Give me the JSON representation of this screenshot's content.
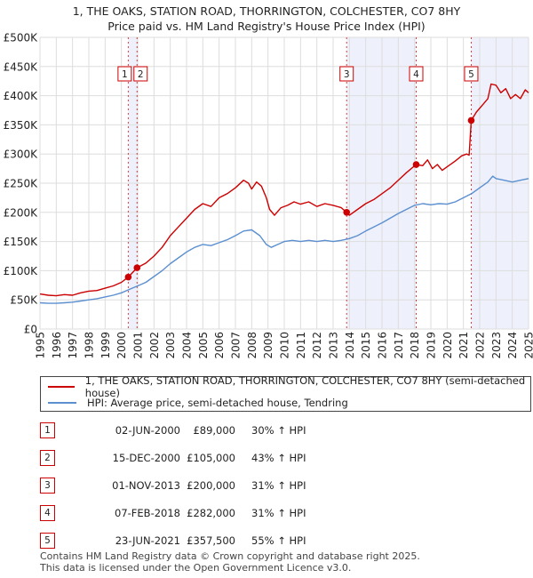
{
  "chart_data": {
    "type": "line",
    "title": "1, THE OAKS, STATION ROAD, THORRINGTON, COLCHESTER, CO7 8HY",
    "subtitle": "Price paid vs. HM Land Registry's House Price Index (HPI)",
    "xlabel": "",
    "ylabel": "",
    "xlim": [
      1995,
      2025
    ],
    "ylim": [
      0,
      500000
    ],
    "x_ticks": [
      "1995",
      "1996",
      "1997",
      "1998",
      "1999",
      "2000",
      "2001",
      "2002",
      "2003",
      "2004",
      "2005",
      "2006",
      "2007",
      "2008",
      "2009",
      "2010",
      "2011",
      "2012",
      "2013",
      "2014",
      "2015",
      "2016",
      "2017",
      "2018",
      "2019",
      "2020",
      "2021",
      "2022",
      "2023",
      "2024",
      "2025"
    ],
    "y_ticks": [
      {
        "value": 0,
        "label": "£0"
      },
      {
        "value": 50000,
        "label": "£50K"
      },
      {
        "value": 100000,
        "label": "£100K"
      },
      {
        "value": 150000,
        "label": "£150K"
      },
      {
        "value": 200000,
        "label": "£200K"
      },
      {
        "value": 250000,
        "label": "£250K"
      },
      {
        "value": 300000,
        "label": "£300K"
      },
      {
        "value": 350000,
        "label": "£350K"
      },
      {
        "value": 400000,
        "label": "£400K"
      },
      {
        "value": 450000,
        "label": "£450K"
      },
      {
        "value": 500000,
        "label": "£500K"
      }
    ],
    "grid": true,
    "series": [
      {
        "name": "1, THE OAKS, STATION ROAD, THORRINGTON, COLCHESTER, CO7 8HY (semi-detached house)",
        "color": "#cc0000",
        "points": [
          [
            1995.0,
            60000
          ],
          [
            1995.5,
            58000
          ],
          [
            1996.0,
            57000
          ],
          [
            1996.5,
            59000
          ],
          [
            1997.0,
            58000
          ],
          [
            1997.5,
            62000
          ],
          [
            1998.0,
            65000
          ],
          [
            1998.5,
            66000
          ],
          [
            1999.0,
            70000
          ],
          [
            1999.5,
            74000
          ],
          [
            2000.0,
            80000
          ],
          [
            2000.42,
            89000
          ],
          [
            2000.96,
            105000
          ],
          [
            2001.5,
            113000
          ],
          [
            2002.0,
            125000
          ],
          [
            2002.5,
            140000
          ],
          [
            2003.0,
            160000
          ],
          [
            2003.5,
            175000
          ],
          [
            2004.0,
            190000
          ],
          [
            2004.5,
            205000
          ],
          [
            2005.0,
            215000
          ],
          [
            2005.5,
            210000
          ],
          [
            2006.0,
            225000
          ],
          [
            2006.5,
            232000
          ],
          [
            2007.0,
            242000
          ],
          [
            2007.5,
            255000
          ],
          [
            2007.8,
            250000
          ],
          [
            2008.0,
            240000
          ],
          [
            2008.3,
            252000
          ],
          [
            2008.6,
            245000
          ],
          [
            2008.9,
            225000
          ],
          [
            2009.1,
            205000
          ],
          [
            2009.4,
            195000
          ],
          [
            2009.8,
            208000
          ],
          [
            2010.2,
            212000
          ],
          [
            2010.6,
            218000
          ],
          [
            2011.0,
            214000
          ],
          [
            2011.5,
            218000
          ],
          [
            2012.0,
            210000
          ],
          [
            2012.5,
            215000
          ],
          [
            2013.0,
            212000
          ],
          [
            2013.5,
            208000
          ],
          [
            2013.83,
            200000
          ],
          [
            2014.0,
            195000
          ],
          [
            2014.5,
            205000
          ],
          [
            2015.0,
            215000
          ],
          [
            2015.5,
            222000
          ],
          [
            2016.0,
            232000
          ],
          [
            2016.5,
            242000
          ],
          [
            2017.0,
            255000
          ],
          [
            2017.5,
            268000
          ],
          [
            2018.1,
            282000
          ],
          [
            2018.5,
            280000
          ],
          [
            2018.8,
            290000
          ],
          [
            2019.1,
            275000
          ],
          [
            2019.4,
            282000
          ],
          [
            2019.7,
            272000
          ],
          [
            2020.0,
            278000
          ],
          [
            2020.5,
            288000
          ],
          [
            2020.9,
            297000
          ],
          [
            2021.2,
            300000
          ],
          [
            2021.35,
            298000
          ],
          [
            2021.48,
            357500
          ],
          [
            2021.8,
            372000
          ],
          [
            2022.2,
            385000
          ],
          [
            2022.5,
            395000
          ],
          [
            2022.7,
            420000
          ],
          [
            2023.0,
            418000
          ],
          [
            2023.3,
            405000
          ],
          [
            2023.6,
            412000
          ],
          [
            2023.9,
            395000
          ],
          [
            2024.2,
            402000
          ],
          [
            2024.5,
            395000
          ],
          [
            2024.8,
            410000
          ],
          [
            2025.0,
            405000
          ]
        ]
      },
      {
        "name": "HPI: Average price, semi-detached house, Tendring",
        "color": "#5b8fd0",
        "points": [
          [
            1995.0,
            45000
          ],
          [
            1995.5,
            44000
          ],
          [
            1996.0,
            44000
          ],
          [
            1996.5,
            45000
          ],
          [
            1997.0,
            46000
          ],
          [
            1997.5,
            48000
          ],
          [
            1998.0,
            50000
          ],
          [
            1998.5,
            52000
          ],
          [
            1999.0,
            55000
          ],
          [
            1999.5,
            58000
          ],
          [
            2000.0,
            62000
          ],
          [
            2000.5,
            68000
          ],
          [
            2001.0,
            74000
          ],
          [
            2001.5,
            80000
          ],
          [
            2002.0,
            90000
          ],
          [
            2002.5,
            100000
          ],
          [
            2003.0,
            112000
          ],
          [
            2003.5,
            122000
          ],
          [
            2004.0,
            132000
          ],
          [
            2004.5,
            140000
          ],
          [
            2005.0,
            145000
          ],
          [
            2005.5,
            143000
          ],
          [
            2006.0,
            148000
          ],
          [
            2006.5,
            153000
          ],
          [
            2007.0,
            160000
          ],
          [
            2007.5,
            168000
          ],
          [
            2008.0,
            170000
          ],
          [
            2008.5,
            160000
          ],
          [
            2008.9,
            145000
          ],
          [
            2009.2,
            140000
          ],
          [
            2009.6,
            145000
          ],
          [
            2010.0,
            150000
          ],
          [
            2010.5,
            152000
          ],
          [
            2011.0,
            150000
          ],
          [
            2011.5,
            152000
          ],
          [
            2012.0,
            150000
          ],
          [
            2012.5,
            152000
          ],
          [
            2013.0,
            150000
          ],
          [
            2013.5,
            152000
          ],
          [
            2014.0,
            155000
          ],
          [
            2014.5,
            160000
          ],
          [
            2015.0,
            168000
          ],
          [
            2015.5,
            175000
          ],
          [
            2016.0,
            182000
          ],
          [
            2016.5,
            190000
          ],
          [
            2017.0,
            198000
          ],
          [
            2017.5,
            205000
          ],
          [
            2018.0,
            212000
          ],
          [
            2018.5,
            215000
          ],
          [
            2019.0,
            213000
          ],
          [
            2019.5,
            215000
          ],
          [
            2020.0,
            214000
          ],
          [
            2020.5,
            218000
          ],
          [
            2021.0,
            225000
          ],
          [
            2021.5,
            232000
          ],
          [
            2022.0,
            242000
          ],
          [
            2022.5,
            252000
          ],
          [
            2022.8,
            262000
          ],
          [
            2023.0,
            258000
          ],
          [
            2023.5,
            255000
          ],
          [
            2024.0,
            252000
          ],
          [
            2024.5,
            255000
          ],
          [
            2025.0,
            258000
          ]
        ]
      }
    ],
    "sales": [
      {
        "num": "1",
        "x": 2000.42,
        "value": 89000
      },
      {
        "num": "2",
        "x": 2000.96,
        "value": 105000
      },
      {
        "num": "3",
        "x": 2013.83,
        "value": 200000
      },
      {
        "num": "4",
        "x": 2018.1,
        "value": 282000
      },
      {
        "num": "5",
        "x": 2021.48,
        "value": 357500
      }
    ],
    "shaded_ranges": [
      [
        2000.42,
        2000.96
      ],
      [
        2013.83,
        2018.1
      ],
      [
        2021.48,
        2025.0
      ]
    ]
  },
  "legend": {
    "property_label": "1, THE OAKS, STATION ROAD, THORRINGTON, COLCHESTER, CO7 8HY (semi-detached house)",
    "hpi_label": "HPI: Average price, semi-detached house, Tendring"
  },
  "sales_table": [
    {
      "num": "1",
      "date": "02-JUN-2000",
      "price": "£89,000",
      "hpi": "30% ↑ HPI"
    },
    {
      "num": "2",
      "date": "15-DEC-2000",
      "price": "£105,000",
      "hpi": "43% ↑ HPI"
    },
    {
      "num": "3",
      "date": "01-NOV-2013",
      "price": "£200,000",
      "hpi": "31% ↑ HPI"
    },
    {
      "num": "4",
      "date": "07-FEB-2018",
      "price": "£282,000",
      "hpi": "31% ↑ HPI"
    },
    {
      "num": "5",
      "date": "23-JUN-2021",
      "price": "£357,500",
      "hpi": "55% ↑ HPI"
    }
  ],
  "footer": {
    "line1": "Contains HM Land Registry data © Crown copyright and database right 2025.",
    "line2": "This data is licensed under the Open Government Licence v3.0."
  },
  "colors": {
    "property": "#cc0000",
    "hpi": "#5b8fd0",
    "shade": "#eef1fb",
    "grid": "#dddddd"
  }
}
